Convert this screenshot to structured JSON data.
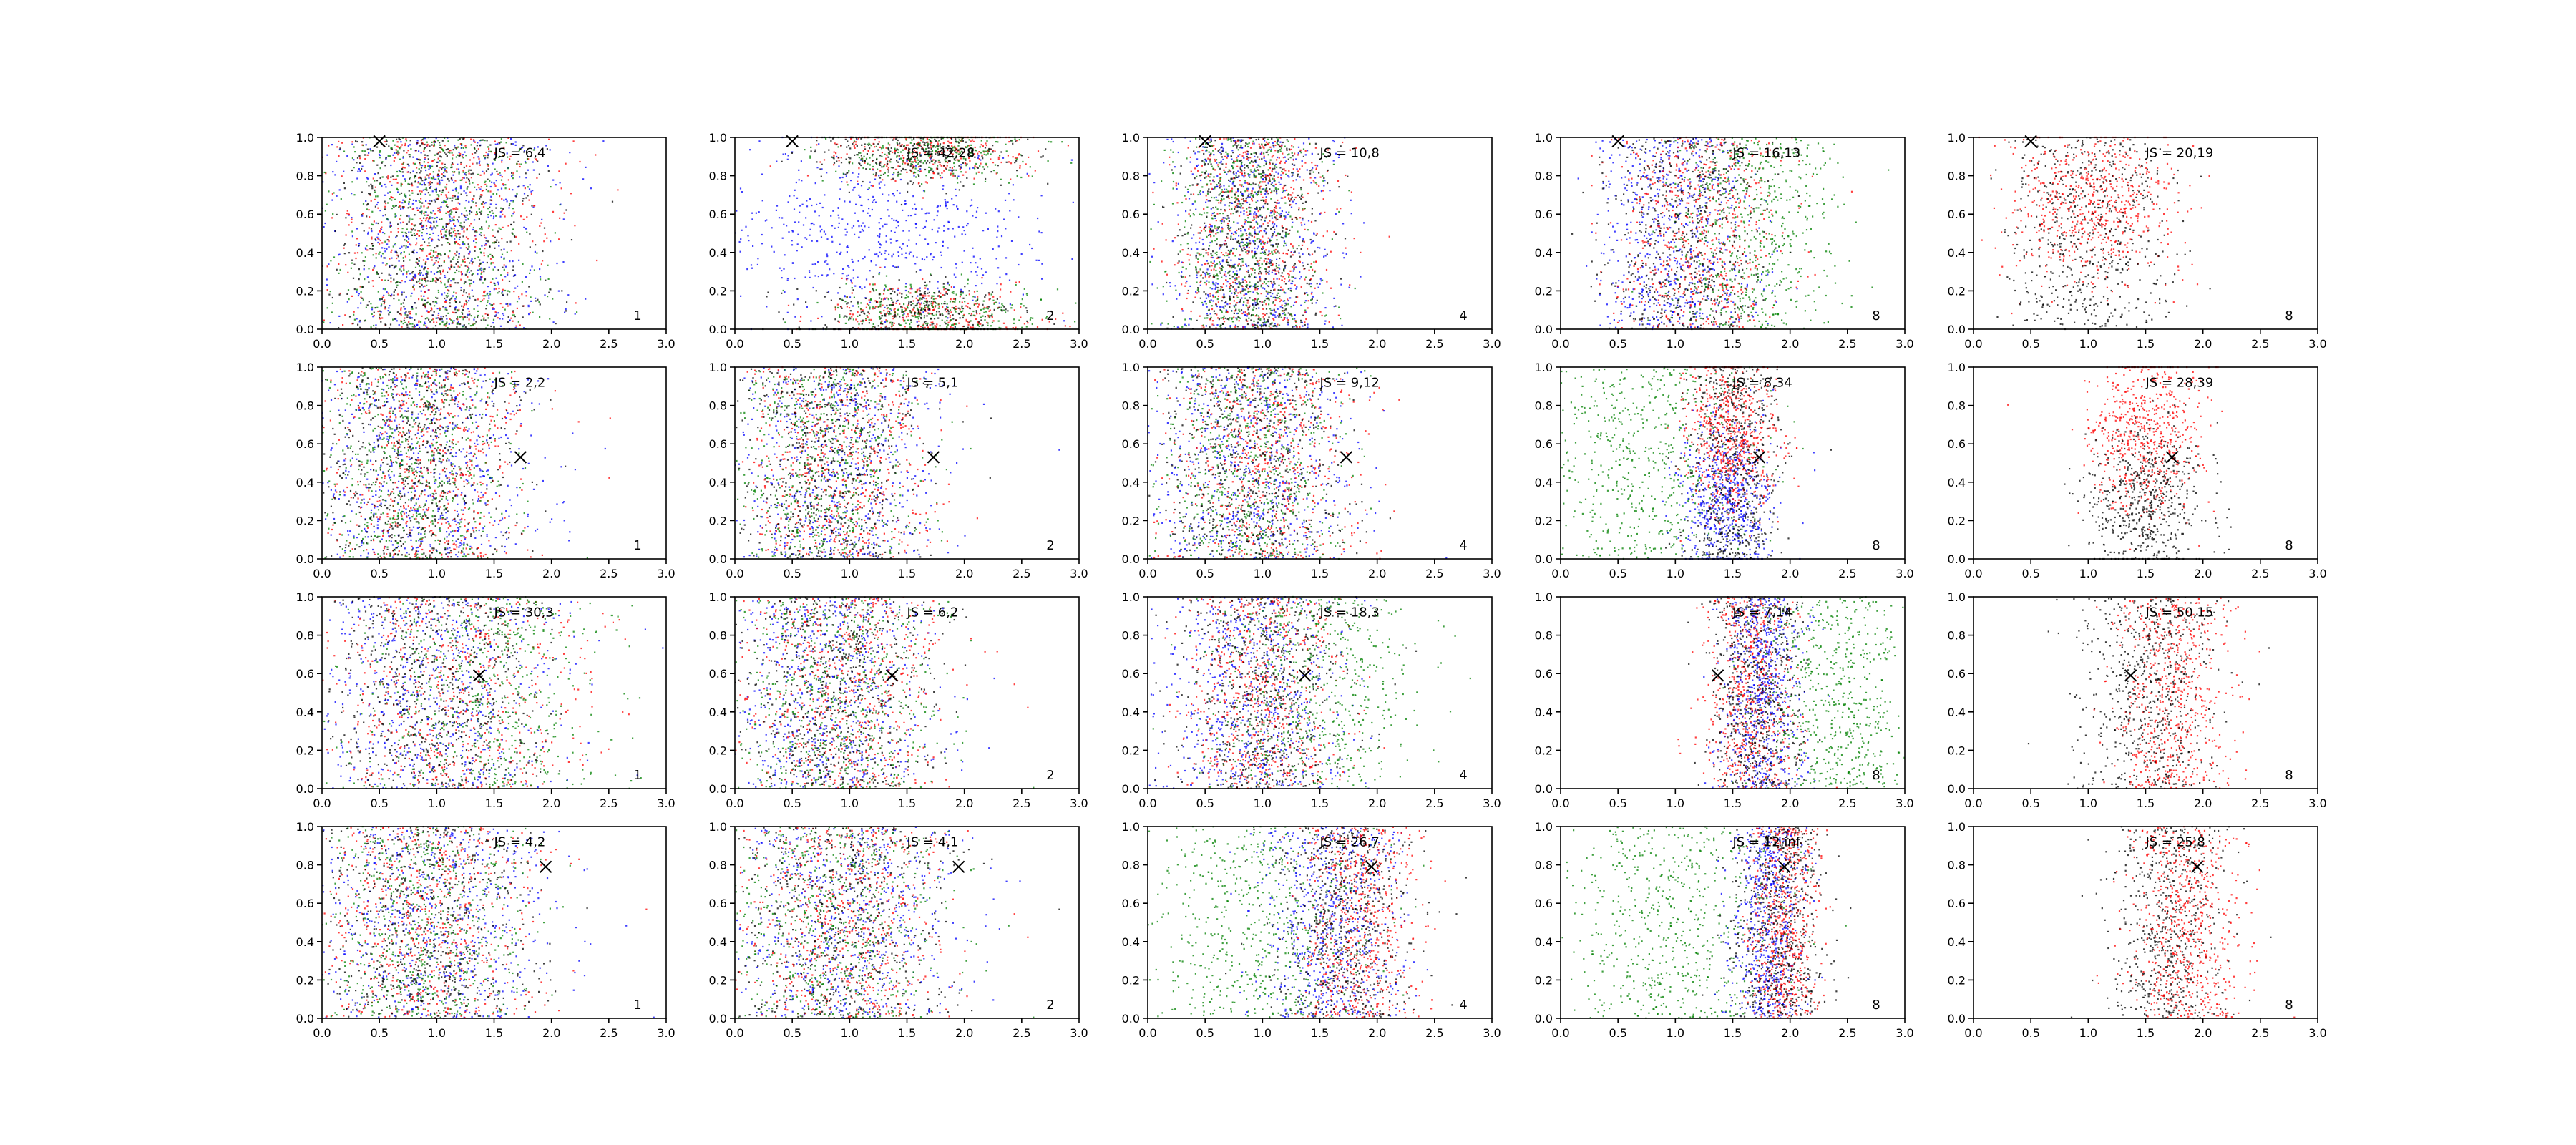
{
  "chart_data": {
    "type": "scatter",
    "rows": 4,
    "cols": 5,
    "xlim": [
      0,
      3
    ],
    "ylim": [
      0,
      1
    ],
    "xticks": [
      "0.0",
      "0.5",
      "1.0",
      "1.5",
      "2.0",
      "2.5",
      "3.0"
    ],
    "yticks": [
      "0.0",
      "0.2",
      "0.4",
      "0.6",
      "0.8",
      "1.0"
    ],
    "grid": false,
    "colors": {
      "blue": "#0000ff",
      "red": "#ff0000",
      "green": "#008000",
      "black": "#000000"
    },
    "markers": [
      {
        "x": 0.5,
        "y": 0.98
      },
      {
        "x": 1.73,
        "y": 0.53
      },
      {
        "x": 1.37,
        "y": 0.59
      },
      {
        "x": 1.95,
        "y": 0.79
      }
    ],
    "panel_labels": [
      "1",
      "2",
      "4",
      "8",
      "8"
    ],
    "js_labels": [
      [
        "JS = 6,4",
        "JS = 42,28",
        "JS = 10,8",
        "JS = 16,13",
        "JS = 20,19"
      ],
      [
        "JS = 2,2",
        "JS = 5,1",
        "JS = 9,12",
        "JS = 8,34",
        "JS = 28,39"
      ],
      [
        "JS = 30,3",
        "JS = 6,2",
        "JS = 18,3",
        "JS = 7,14",
        "JS = 50,15"
      ],
      [
        "JS = 4,2",
        "JS = 4,1",
        "JS = 26,7",
        "JS = 12,inf",
        "JS = 25,8"
      ]
    ],
    "point_clouds": [
      [
        [
          {
            "color": "blue",
            "cx": 1.0,
            "sx": 0.55,
            "yw": "uniform"
          },
          {
            "color": "red",
            "cx": 1.0,
            "sx": 0.5,
            "yw": "uniform"
          },
          {
            "color": "green",
            "cx": 1.0,
            "sx": 0.45,
            "yw": "uniform"
          },
          {
            "color": "black",
            "cx": 1.0,
            "sx": 0.45,
            "yw": "uniform"
          }
        ],
        [
          {
            "color": "blue",
            "cx": 1.2,
            "sx": 0.7,
            "yw": "mid"
          },
          {
            "color": "red",
            "cx": 1.7,
            "sx": 0.45,
            "yw": "edges"
          },
          {
            "color": "green",
            "cx": 1.7,
            "sx": 0.45,
            "yw": "edges"
          },
          {
            "color": "black",
            "cx": 1.6,
            "sx": 0.45,
            "yw": "edges"
          }
        ],
        [
          {
            "color": "blue",
            "cx": 0.9,
            "sx": 0.35,
            "yw": "uniform"
          },
          {
            "color": "red",
            "cx": 0.95,
            "sx": 0.35,
            "yw": "uniform"
          },
          {
            "color": "green",
            "cx": 0.85,
            "sx": 0.3,
            "yw": "uniform"
          },
          {
            "color": "black",
            "cx": 0.9,
            "sx": 0.3,
            "yw": "uniform"
          }
        ],
        [
          {
            "color": "blue",
            "cx": 1.0,
            "sx": 0.35,
            "yw": "uniform"
          },
          {
            "color": "red",
            "cx": 1.2,
            "sx": 0.35,
            "yw": "uniform"
          },
          {
            "color": "green",
            "cx": 1.7,
            "sx": 0.35,
            "yw": "uniform"
          },
          {
            "color": "black",
            "cx": 1.1,
            "sx": 0.35,
            "yw": "uniform"
          }
        ],
        [
          {
            "color": "red",
            "cx": 1.0,
            "sx": 0.35,
            "yw": "high"
          },
          {
            "color": "black",
            "cx": 1.0,
            "sx": 0.35,
            "yw": "uniform"
          }
        ]
      ],
      [
        [
          {
            "color": "blue",
            "cx": 0.9,
            "sx": 0.5,
            "yw": "uniform"
          },
          {
            "color": "red",
            "cx": 0.9,
            "sx": 0.45,
            "yw": "uniform"
          },
          {
            "color": "green",
            "cx": 0.8,
            "sx": 0.4,
            "yw": "uniform"
          },
          {
            "color": "black",
            "cx": 0.8,
            "sx": 0.4,
            "yw": "uniform"
          }
        ],
        [
          {
            "color": "blue",
            "cx": 0.9,
            "sx": 0.45,
            "yw": "uniform"
          },
          {
            "color": "red",
            "cx": 0.9,
            "sx": 0.4,
            "yw": "uniform"
          },
          {
            "color": "green",
            "cx": 0.8,
            "sx": 0.4,
            "yw": "uniform"
          },
          {
            "color": "black",
            "cx": 0.8,
            "sx": 0.4,
            "yw": "uniform"
          }
        ],
        [
          {
            "color": "blue",
            "cx": 0.9,
            "sx": 0.45,
            "yw": "uniform"
          },
          {
            "color": "red",
            "cx": 1.0,
            "sx": 0.4,
            "yw": "uniform"
          },
          {
            "color": "green",
            "cx": 0.9,
            "sx": 0.4,
            "yw": "uniform"
          },
          {
            "color": "black",
            "cx": 0.9,
            "sx": 0.4,
            "yw": "uniform"
          }
        ],
        [
          {
            "color": "green",
            "cx": 0.7,
            "sx": 0.45,
            "yw": "uniform"
          },
          {
            "color": "blue",
            "cx": 1.45,
            "sx": 0.2,
            "yw": "low"
          },
          {
            "color": "red",
            "cx": 1.5,
            "sx": 0.2,
            "yw": "high"
          },
          {
            "color": "black",
            "cx": 1.5,
            "sx": 0.2,
            "yw": "uniform"
          }
        ],
        [
          {
            "color": "red",
            "cx": 1.5,
            "sx": 0.25,
            "yw": "high"
          },
          {
            "color": "black",
            "cx": 1.5,
            "sx": 0.25,
            "yw": "low"
          }
        ]
      ],
      [
        [
          {
            "color": "blue",
            "cx": 1.0,
            "sx": 0.55,
            "yw": "uniform"
          },
          {
            "color": "red",
            "cx": 1.2,
            "sx": 0.55,
            "yw": "uniform"
          },
          {
            "color": "green",
            "cx": 1.4,
            "sx": 0.5,
            "yw": "uniform"
          },
          {
            "color": "black",
            "cx": 1.0,
            "sx": 0.45,
            "yw": "uniform"
          }
        ],
        [
          {
            "color": "blue",
            "cx": 0.85,
            "sx": 0.45,
            "yw": "uniform"
          },
          {
            "color": "red",
            "cx": 0.95,
            "sx": 0.45,
            "yw": "uniform"
          },
          {
            "color": "green",
            "cx": 0.9,
            "sx": 0.45,
            "yw": "uniform"
          },
          {
            "color": "black",
            "cx": 0.9,
            "sx": 0.4,
            "yw": "uniform"
          }
        ],
        [
          {
            "color": "blue",
            "cx": 0.9,
            "sx": 0.4,
            "yw": "uniform"
          },
          {
            "color": "red",
            "cx": 1.0,
            "sx": 0.35,
            "yw": "uniform"
          },
          {
            "color": "green",
            "cx": 1.4,
            "sx": 0.45,
            "yw": "uniform"
          },
          {
            "color": "black",
            "cx": 1.0,
            "sx": 0.35,
            "yw": "uniform"
          }
        ],
        [
          {
            "color": "red",
            "cx": 1.65,
            "sx": 0.2,
            "yw": "uniform"
          },
          {
            "color": "blue",
            "cx": 1.75,
            "sx": 0.18,
            "yw": "uniform"
          },
          {
            "color": "green",
            "cx": 2.4,
            "sx": 0.35,
            "yw": "uniform"
          },
          {
            "color": "black",
            "cx": 1.7,
            "sx": 0.2,
            "yw": "uniform"
          }
        ],
        [
          {
            "color": "red",
            "cx": 1.75,
            "sx": 0.25,
            "yw": "uniform"
          },
          {
            "color": "black",
            "cx": 1.5,
            "sx": 0.3,
            "yw": "uniform"
          }
        ]
      ],
      [
        [
          {
            "color": "blue",
            "cx": 1.0,
            "sx": 0.5,
            "yw": "uniform"
          },
          {
            "color": "red",
            "cx": 0.9,
            "sx": 0.45,
            "yw": "uniform"
          },
          {
            "color": "green",
            "cx": 0.9,
            "sx": 0.45,
            "yw": "uniform"
          },
          {
            "color": "black",
            "cx": 0.9,
            "sx": 0.45,
            "yw": "uniform"
          }
        ],
        [
          {
            "color": "blue",
            "cx": 1.0,
            "sx": 0.5,
            "yw": "uniform"
          },
          {
            "color": "red",
            "cx": 0.95,
            "sx": 0.45,
            "yw": "uniform"
          },
          {
            "color": "green",
            "cx": 0.9,
            "sx": 0.45,
            "yw": "uniform"
          },
          {
            "color": "black",
            "cx": 0.9,
            "sx": 0.45,
            "yw": "uniform"
          }
        ],
        [
          {
            "color": "green",
            "cx": 1.0,
            "sx": 0.5,
            "yw": "uniform"
          },
          {
            "color": "blue",
            "cx": 1.6,
            "sx": 0.3,
            "yw": "uniform"
          },
          {
            "color": "red",
            "cx": 1.85,
            "sx": 0.25,
            "yw": "uniform"
          },
          {
            "color": "black",
            "cx": 1.7,
            "sx": 0.3,
            "yw": "uniform"
          }
        ],
        [
          {
            "color": "green",
            "cx": 1.0,
            "sx": 0.45,
            "yw": "uniform"
          },
          {
            "color": "blue",
            "cx": 1.8,
            "sx": 0.15,
            "yw": "uniform"
          },
          {
            "color": "red",
            "cx": 1.95,
            "sx": 0.15,
            "yw": "uniform"
          },
          {
            "color": "black",
            "cx": 1.9,
            "sx": 0.2,
            "yw": "uniform"
          }
        ],
        [
          {
            "color": "black",
            "cx": 1.7,
            "sx": 0.25,
            "yw": "uniform"
          },
          {
            "color": "red",
            "cx": 1.85,
            "sx": 0.25,
            "yw": "uniform"
          }
        ]
      ]
    ]
  }
}
